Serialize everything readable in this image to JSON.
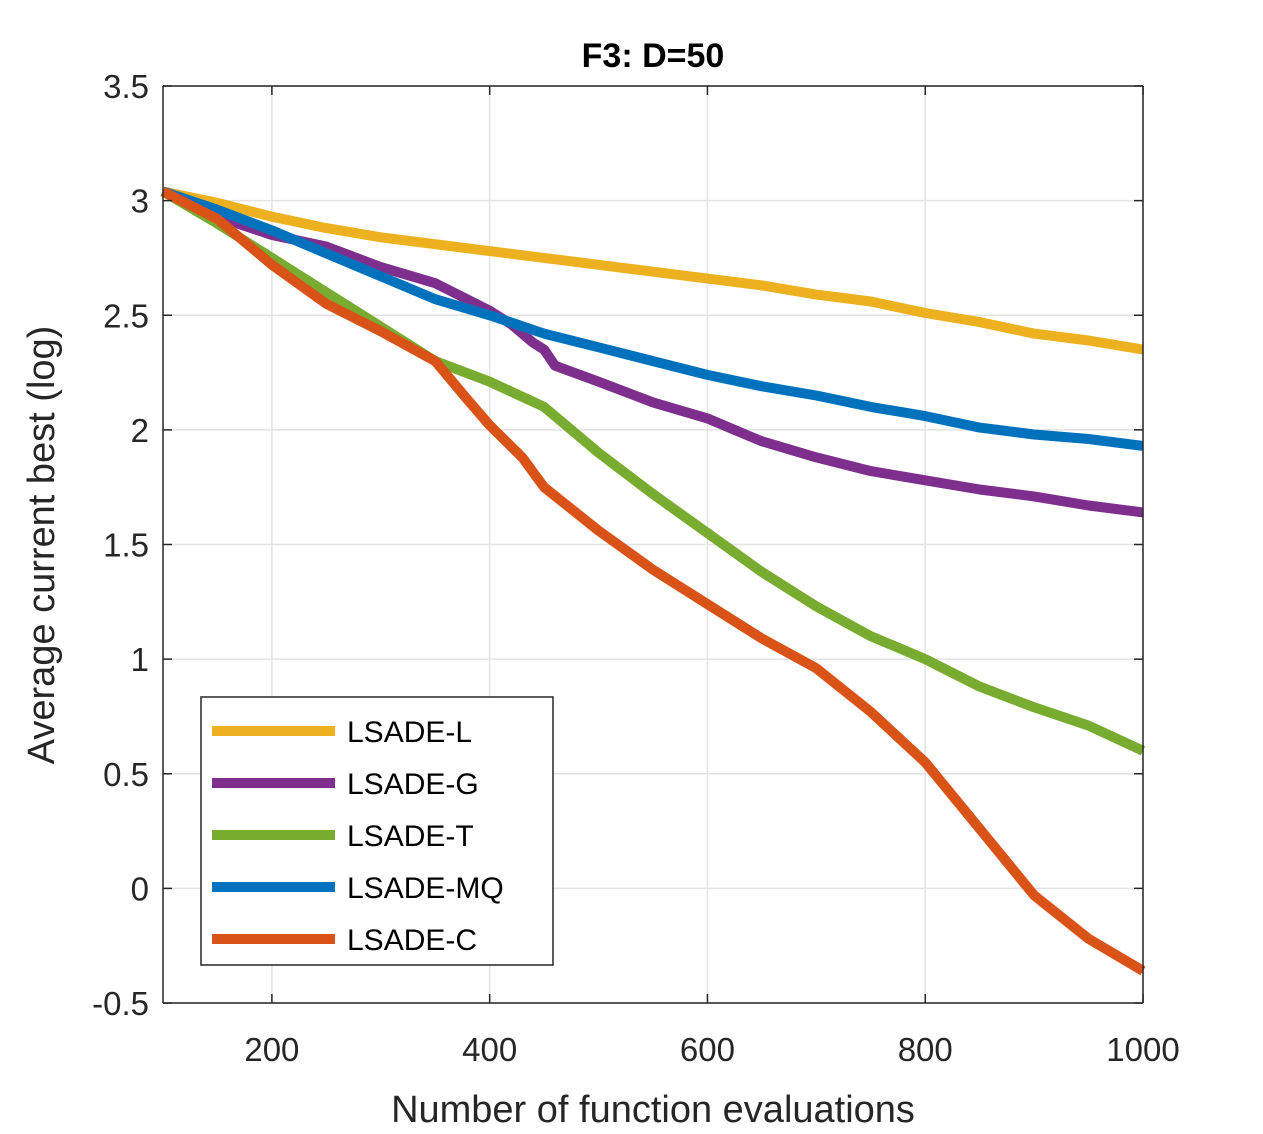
{
  "chart_data": {
    "type": "line",
    "title": "F3: D=50",
    "xlabel": "Number of function evaluations",
    "ylabel": "Average current best (log)",
    "xlim": [
      100,
      1000
    ],
    "ylim": [
      -0.5,
      3.5
    ],
    "xticks": [
      200,
      400,
      600,
      800,
      1000
    ],
    "xtick_labels": [
      "200",
      "400",
      "600",
      "800",
      "1000"
    ],
    "yticks": [
      -0.5,
      0,
      0.5,
      1,
      1.5,
      2,
      2.5,
      3,
      3.5
    ],
    "ytick_labels": [
      "-0.5",
      "0",
      "0.5",
      "1",
      "1.5",
      "2",
      "2.5",
      "3",
      "3.5"
    ],
    "grid": true,
    "legend_position": "bottom-left",
    "series": [
      {
        "name": "LSADE-L",
        "color": "#EDB120",
        "x": [
          100,
          150,
          200,
          250,
          300,
          350,
          400,
          450,
          500,
          550,
          600,
          650,
          700,
          750,
          800,
          850,
          900,
          950,
          1000
        ],
        "y": [
          3.04,
          2.99,
          2.93,
          2.88,
          2.84,
          2.81,
          2.78,
          2.75,
          2.72,
          2.69,
          2.66,
          2.63,
          2.59,
          2.56,
          2.51,
          2.47,
          2.42,
          2.39,
          2.35
        ]
      },
      {
        "name": "LSADE-G",
        "color": "#7E2F8E",
        "x": [
          100,
          150,
          200,
          250,
          300,
          350,
          400,
          420,
          440,
          450,
          460,
          500,
          550,
          600,
          620,
          640,
          650,
          700,
          750,
          800,
          850,
          900,
          950,
          1000
        ],
        "y": [
          3.04,
          2.93,
          2.85,
          2.8,
          2.71,
          2.64,
          2.52,
          2.46,
          2.38,
          2.35,
          2.28,
          2.21,
          2.12,
          2.05,
          2.01,
          1.97,
          1.95,
          1.88,
          1.82,
          1.78,
          1.74,
          1.71,
          1.67,
          1.64
        ]
      },
      {
        "name": "LSADE-T",
        "color": "#77AC30",
        "x": [
          100,
          150,
          200,
          250,
          300,
          350,
          400,
          450,
          500,
          550,
          600,
          650,
          700,
          750,
          800,
          850,
          900,
          950,
          1000
        ],
        "y": [
          3.04,
          2.9,
          2.75,
          2.6,
          2.45,
          2.3,
          2.21,
          2.1,
          1.9,
          1.72,
          1.55,
          1.38,
          1.23,
          1.1,
          1.0,
          0.88,
          0.79,
          0.71,
          0.6
        ]
      },
      {
        "name": "LSADE-MQ",
        "color": "#0072BD",
        "x": [
          100,
          150,
          200,
          250,
          300,
          350,
          400,
          450,
          500,
          550,
          600,
          650,
          700,
          750,
          800,
          850,
          900,
          950,
          1000
        ],
        "y": [
          3.04,
          2.96,
          2.87,
          2.77,
          2.67,
          2.57,
          2.5,
          2.42,
          2.36,
          2.3,
          2.24,
          2.19,
          2.15,
          2.1,
          2.06,
          2.01,
          1.98,
          1.96,
          1.93
        ]
      },
      {
        "name": "LSADE-C",
        "color": "#D95319",
        "x": [
          100,
          150,
          200,
          250,
          300,
          350,
          380,
          400,
          430,
          450,
          500,
          550,
          600,
          650,
          700,
          750,
          800,
          850,
          900,
          950,
          1000
        ],
        "y": [
          3.04,
          2.92,
          2.72,
          2.55,
          2.43,
          2.3,
          2.13,
          2.02,
          1.88,
          1.75,
          1.56,
          1.39,
          1.24,
          1.09,
          0.96,
          0.77,
          0.55,
          0.26,
          -0.03,
          -0.22,
          -0.36
        ]
      }
    ]
  }
}
